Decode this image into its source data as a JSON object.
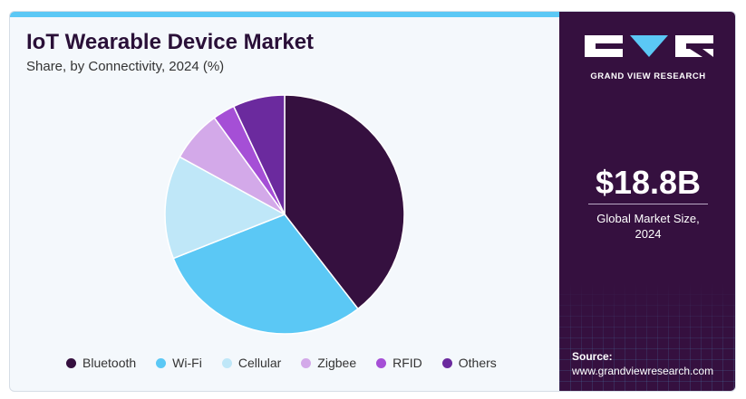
{
  "header": {
    "title": "IoT Wearable Device Market",
    "subtitle": "Share, by Connectivity, 2024 (%)"
  },
  "side_panel": {
    "brand": "GRAND VIEW RESEARCH",
    "market_value": "$18.8B",
    "market_label_line1": "Global Market Size,",
    "market_label_line2": "2024",
    "source_label": "Source:",
    "source_url": "www.grandviewresearch.com"
  },
  "colors": {
    "Bluetooth": "#35103f",
    "Wi-Fi": "#5bc8f5",
    "Cellular": "#bfe7f8",
    "Zigbee": "#d3a9e9",
    "RFID": "#a54fd6",
    "Others": "#6b2a9e",
    "panel": "#35103f",
    "accent": "#5bc8f5"
  },
  "chart_data": {
    "type": "pie",
    "title": "IoT Wearable Device Market",
    "subtitle": "Share, by Connectivity, 2024 (%)",
    "categories": [
      "Bluetooth",
      "Wi-Fi",
      "Cellular",
      "Zigbee",
      "RFID",
      "Others"
    ],
    "values": [
      39.5,
      29.5,
      14.0,
      7.0,
      3.0,
      7.0
    ],
    "legend_position": "bottom"
  }
}
